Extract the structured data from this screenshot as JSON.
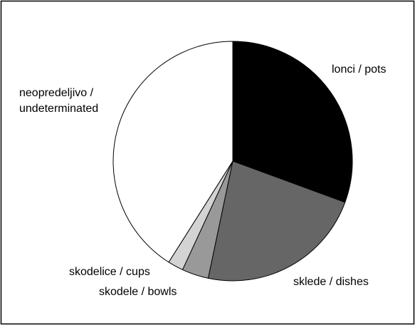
{
  "chart_data": {
    "type": "pie",
    "title": "",
    "legend": "none",
    "slices": [
      {
        "label": "lonci / pots",
        "label_lines": [
          "lonci / pots"
        ],
        "value": 30.6,
        "color": "#000000"
      },
      {
        "label": "sklede / dishes",
        "label_lines": [
          "sklede / dishes"
        ],
        "value": 22.7,
        "color": "#666666"
      },
      {
        "label": "skodele / bowls",
        "label_lines": [
          "skodele / bowls"
        ],
        "value": 3.6,
        "color": "#999999"
      },
      {
        "label": "skodelice / cups",
        "label_lines": [
          "skodelice / cups"
        ],
        "value": 2.1,
        "color": "#d3d3d3"
      },
      {
        "label": "neopredeljivo / undeterminated",
        "label_lines": [
          "neopredeljivo /",
          "undeterminated"
        ],
        "value": 41.0,
        "color": "#ffffff"
      }
    ]
  }
}
